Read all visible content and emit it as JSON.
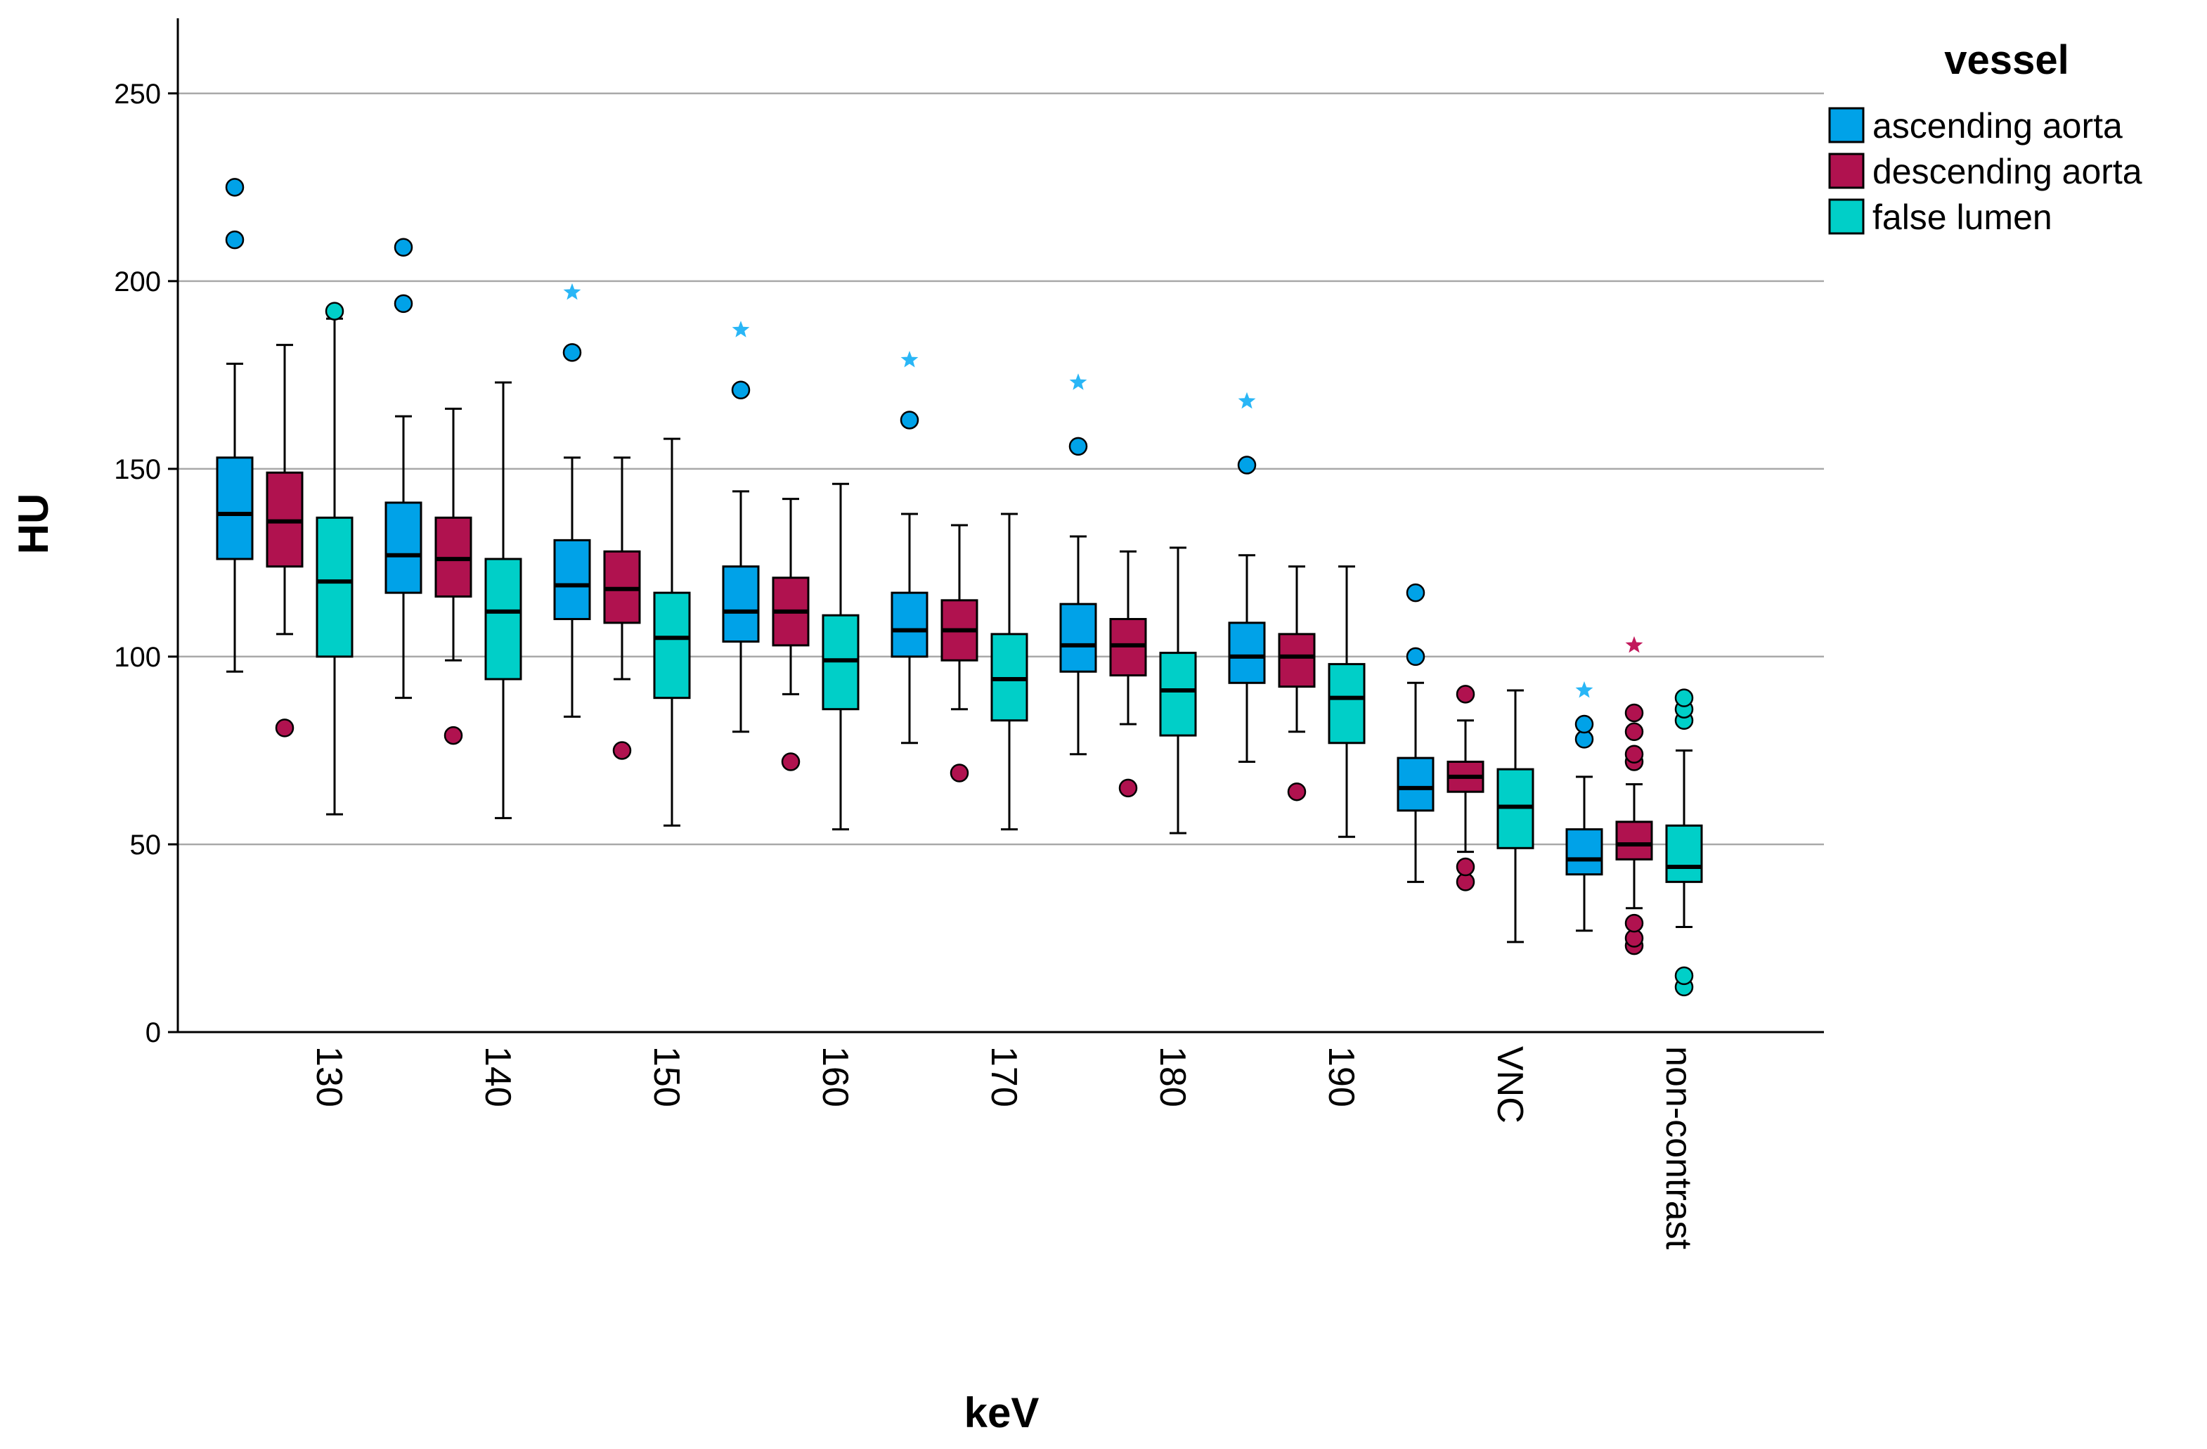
{
  "chart_data": {
    "type": "boxplot",
    "title": "",
    "xlabel": "keV",
    "ylabel": "HU",
    "ylim": [
      0,
      270
    ],
    "yticks": [
      0,
      50,
      100,
      150,
      200,
      250
    ],
    "grid": true,
    "legend_title": "vessel",
    "legend_position": "top-right",
    "categories": [
      "130",
      "140",
      "150",
      "160",
      "170",
      "180",
      "190",
      "VNC",
      "non-contrast"
    ],
    "series": [
      {
        "name": "ascending aorta",
        "color": "#00A2E8",
        "star_color": "#29B6F6",
        "boxes": [
          {
            "whisker_low": 96,
            "q1": 126,
            "median": 138,
            "q3": 153,
            "whisker_high": 178,
            "outliers": [
              211,
              225
            ],
            "extremes": []
          },
          {
            "whisker_low": 89,
            "q1": 117,
            "median": 127,
            "q3": 141,
            "whisker_high": 164,
            "outliers": [
              194,
              209
            ],
            "extremes": []
          },
          {
            "whisker_low": 84,
            "q1": 110,
            "median": 119,
            "q3": 131,
            "whisker_high": 153,
            "outliers": [
              181
            ],
            "extremes": [
              197
            ]
          },
          {
            "whisker_low": 80,
            "q1": 104,
            "median": 112,
            "q3": 124,
            "whisker_high": 144,
            "outliers": [
              171
            ],
            "extremes": [
              187
            ]
          },
          {
            "whisker_low": 77,
            "q1": 100,
            "median": 107,
            "q3": 117,
            "whisker_high": 138,
            "outliers": [
              163
            ],
            "extremes": [
              179
            ]
          },
          {
            "whisker_low": 74,
            "q1": 96,
            "median": 103,
            "q3": 114,
            "whisker_high": 132,
            "outliers": [
              156
            ],
            "extremes": [
              173
            ]
          },
          {
            "whisker_low": 72,
            "q1": 93,
            "median": 100,
            "q3": 109,
            "whisker_high": 127,
            "outliers": [
              151
            ],
            "extremes": [
              168
            ]
          },
          {
            "whisker_low": 40,
            "q1": 59,
            "median": 65,
            "q3": 73,
            "whisker_high": 93,
            "outliers": [
              100,
              117
            ],
            "extremes": []
          },
          {
            "whisker_low": 27,
            "q1": 42,
            "median": 46,
            "q3": 54,
            "whisker_high": 68,
            "outliers": [
              78,
              82
            ],
            "extremes": [
              91
            ]
          }
        ]
      },
      {
        "name": "descending aorta",
        "color": "#B0124F",
        "star_color": "#C2185B",
        "boxes": [
          {
            "whisker_low": 106,
            "q1": 124,
            "median": 136,
            "q3": 149,
            "whisker_high": 183,
            "outliers": [
              81
            ],
            "extremes": []
          },
          {
            "whisker_low": 99,
            "q1": 116,
            "median": 126,
            "q3": 137,
            "whisker_high": 166,
            "outliers": [
              79
            ],
            "extremes": []
          },
          {
            "whisker_low": 94,
            "q1": 109,
            "median": 118,
            "q3": 128,
            "whisker_high": 153,
            "outliers": [
              75
            ],
            "extremes": []
          },
          {
            "whisker_low": 90,
            "q1": 103,
            "median": 112,
            "q3": 121,
            "whisker_high": 142,
            "outliers": [
              72
            ],
            "extremes": []
          },
          {
            "whisker_low": 86,
            "q1": 99,
            "median": 107,
            "q3": 115,
            "whisker_high": 135,
            "outliers": [
              69
            ],
            "extremes": []
          },
          {
            "whisker_low": 82,
            "q1": 95,
            "median": 103,
            "q3": 110,
            "whisker_high": 128,
            "outliers": [
              65
            ],
            "extremes": []
          },
          {
            "whisker_low": 80,
            "q1": 92,
            "median": 100,
            "q3": 106,
            "whisker_high": 124,
            "outliers": [
              64
            ],
            "extremes": []
          },
          {
            "whisker_low": 48,
            "q1": 64,
            "median": 68,
            "q3": 72,
            "whisker_high": 83,
            "outliers": [
              40,
              44,
              90
            ],
            "extremes": []
          },
          {
            "whisker_low": 33,
            "q1": 46,
            "median": 50,
            "q3": 56,
            "whisker_high": 66,
            "outliers": [
              23,
              25,
              29,
              72,
              74,
              80,
              85
            ],
            "extremes": [
              103
            ]
          }
        ]
      },
      {
        "name": "false lumen",
        "color": "#00CFC8",
        "star_color": "#00CFC8",
        "boxes": [
          {
            "whisker_low": 58,
            "q1": 100,
            "median": 120,
            "q3": 137,
            "whisker_high": 190,
            "outliers": [
              192
            ],
            "extremes": []
          },
          {
            "whisker_low": 57,
            "q1": 94,
            "median": 112,
            "q3": 126,
            "whisker_high": 173,
            "outliers": [],
            "extremes": []
          },
          {
            "whisker_low": 55,
            "q1": 89,
            "median": 105,
            "q3": 117,
            "whisker_high": 158,
            "outliers": [],
            "extremes": []
          },
          {
            "whisker_low": 54,
            "q1": 86,
            "median": 99,
            "q3": 111,
            "whisker_high": 146,
            "outliers": [],
            "extremes": []
          },
          {
            "whisker_low": 54,
            "q1": 83,
            "median": 94,
            "q3": 106,
            "whisker_high": 138,
            "outliers": [],
            "extremes": []
          },
          {
            "whisker_low": 53,
            "q1": 79,
            "median": 91,
            "q3": 101,
            "whisker_high": 129,
            "outliers": [],
            "extremes": []
          },
          {
            "whisker_low": 52,
            "q1": 77,
            "median": 89,
            "q3": 98,
            "whisker_high": 124,
            "outliers": [],
            "extremes": []
          },
          {
            "whisker_low": 24,
            "q1": 49,
            "median": 60,
            "q3": 70,
            "whisker_high": 91,
            "outliers": [],
            "extremes": []
          },
          {
            "whisker_low": 28,
            "q1": 40,
            "median": 44,
            "q3": 55,
            "whisker_high": 75,
            "outliers": [
              12,
              15,
              83,
              86,
              89
            ],
            "extremes": []
          }
        ]
      }
    ]
  }
}
